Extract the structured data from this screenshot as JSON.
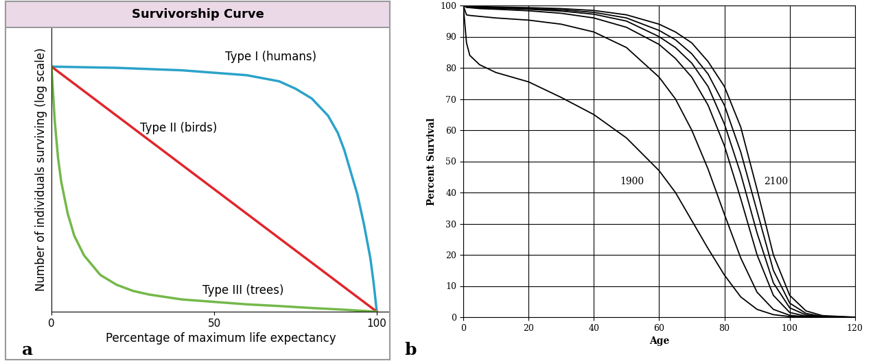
{
  "chart_data": [
    {
      "type": "line",
      "title": "Survivorship Curve",
      "x_label": "Percentage of maximum life expectancy",
      "y_label": "Number of individuals surviving (log scale)",
      "panel_label": "a",
      "xlim": [
        0,
        104
      ],
      "ylim": [
        0,
        116
      ],
      "xticks": [
        0,
        50,
        100
      ],
      "yticks": [],
      "tick_labels": "x",
      "grid": false,
      "series": [
        {
          "name": "Type I (humans)",
          "color": "#2ba3c9",
          "x": [
            0,
            20,
            40,
            60,
            70,
            75,
            80,
            85,
            88,
            90,
            92,
            94,
            96,
            98,
            99,
            100
          ],
          "values": [
            100,
            99.5,
            98.5,
            96.5,
            94,
            91,
            87,
            80,
            73,
            66,
            57,
            48,
            36,
            22,
            12,
            0
          ]
        },
        {
          "name": "Type II (birds)",
          "color": "#e0262b",
          "x": [
            0,
            100
          ],
          "values": [
            100,
            0
          ]
        },
        {
          "name": "Type III (trees)",
          "color": "#74b84a",
          "x": [
            0,
            1,
            2,
            3,
            5,
            7,
            10,
            15,
            20,
            25,
            30,
            40,
            50,
            60,
            70,
            80,
            90,
            100
          ],
          "values": [
            100,
            78,
            63,
            53,
            40,
            31,
            23,
            15,
            11,
            8.5,
            7,
            5,
            4,
            3,
            2.3,
            1.5,
            0.8,
            0
          ]
        }
      ]
    },
    {
      "type": "line",
      "x_label": "Age",
      "y_label": "Percent Survival",
      "panel_label": "b",
      "xlim": [
        0,
        120
      ],
      "ylim": [
        0,
        100
      ],
      "xticks": [
        0,
        20,
        40,
        60,
        80,
        100,
        120
      ],
      "yticks": [
        0,
        10,
        20,
        30,
        40,
        50,
        60,
        70,
        80,
        90,
        100
      ],
      "grid": true,
      "x": [
        0,
        1,
        2,
        5,
        10,
        20,
        30,
        40,
        50,
        60,
        65,
        70,
        75,
        80,
        85,
        90,
        95,
        100,
        105,
        110,
        120
      ],
      "series": [
        {
          "name": "1900",
          "color": "#000000",
          "values": [
            100,
            88,
            84,
            81,
            78.5,
            75.5,
            70.5,
            65,
            57.5,
            47,
            40,
            31,
            22,
            13.5,
            6.5,
            2.5,
            0.8,
            0.2,
            0.05,
            0,
            0
          ]
        },
        {
          "color": "#000000",
          "values": [
            100,
            97,
            96.8,
            96.5,
            96,
            95.3,
            94,
            91.5,
            86.5,
            77,
            70,
            60,
            47.5,
            33,
            19,
            8,
            2.5,
            0.6,
            0.1,
            0,
            0
          ]
        },
        {
          "color": "#000000",
          "values": [
            100,
            99.4,
            99.3,
            99,
            98.8,
            98.3,
            97.5,
            96,
            93,
            87.5,
            83,
            77,
            68,
            55,
            38,
            20,
            7,
            1.5,
            0.3,
            0,
            0
          ]
        },
        {
          "color": "#000000",
          "values": [
            100,
            99.5,
            99.4,
            99.3,
            99.1,
            98.8,
            98.2,
            97.2,
            95,
            90,
            86.5,
            81.5,
            74,
            62,
            46,
            27,
            11,
            3,
            0.7,
            0.1,
            0
          ]
        },
        {
          "color": "#000000",
          "values": [
            100,
            99.6,
            99.6,
            99.5,
            99.3,
            99,
            98.6,
            97.8,
            96,
            92,
            89,
            84.5,
            78,
            68,
            53,
            34,
            15,
            4.5,
            1.2,
            0.2,
            0
          ]
        },
        {
          "name": "2100",
          "color": "#000000",
          "values": [
            100,
            99.7,
            99.7,
            99.6,
            99.5,
            99.3,
            99,
            98.4,
            97,
            94,
            91.5,
            88,
            82,
            74,
            61,
            41,
            20,
            7,
            2,
            0.5,
            0
          ]
        }
      ]
    }
  ]
}
